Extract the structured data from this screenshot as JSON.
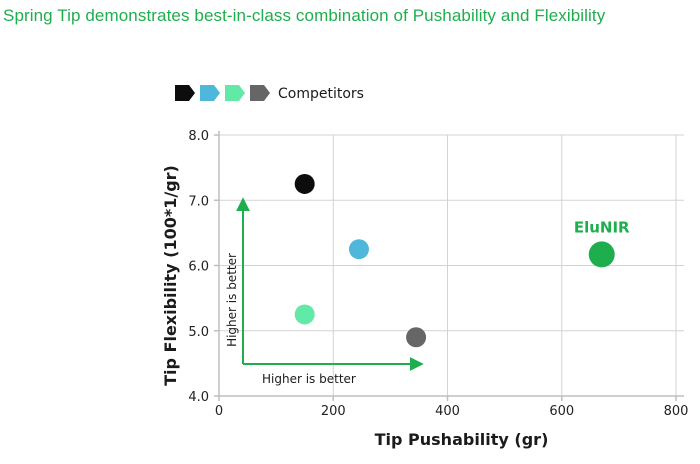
{
  "headline": "Spring Tip demonstrates best-in-class combination of Pushability and Flexibility",
  "colors": {
    "accent": "#1fae4e",
    "grid": "#d3d3d3",
    "axis": "#bfbfbf",
    "black": "#0d0d0d",
    "blue": "#4fb8da",
    "mint": "#62e9a7",
    "gray": "#666666",
    "elu": "#1fae4e"
  },
  "chart_data": {
    "type": "scatter",
    "xlabel": "Tip Pushability (gr)",
    "ylabel": "Tip Flexibility (100*1/gr)",
    "xlim": [
      0,
      800
    ],
    "ylim": [
      4.0,
      8.0
    ],
    "xticks": [
      "0",
      "200",
      "400",
      "600",
      "800"
    ],
    "yticks": [
      "4.0",
      "5.0",
      "6.0",
      "7.0",
      "8.0"
    ],
    "grid": true,
    "legend": {
      "placement": "top-left",
      "label": "Competitors",
      "swatches": [
        "#0d0d0d",
        "#4fb8da",
        "#62e9a7",
        "#666666"
      ]
    },
    "points": [
      {
        "x": 150,
        "y": 7.25,
        "color": "#0d0d0d"
      },
      {
        "x": 245,
        "y": 6.25,
        "color": "#4fb8da"
      },
      {
        "x": 150,
        "y": 5.25,
        "color": "#62e9a7"
      },
      {
        "x": 345,
        "y": 4.9,
        "color": "#666666"
      },
      {
        "x": 670,
        "y": 6.17,
        "color": "#1fae4e",
        "label": "EluNIR"
      }
    ],
    "annotations": {
      "x_arrow_label": "Higher is better",
      "y_arrow_label": "Higher is better"
    }
  }
}
